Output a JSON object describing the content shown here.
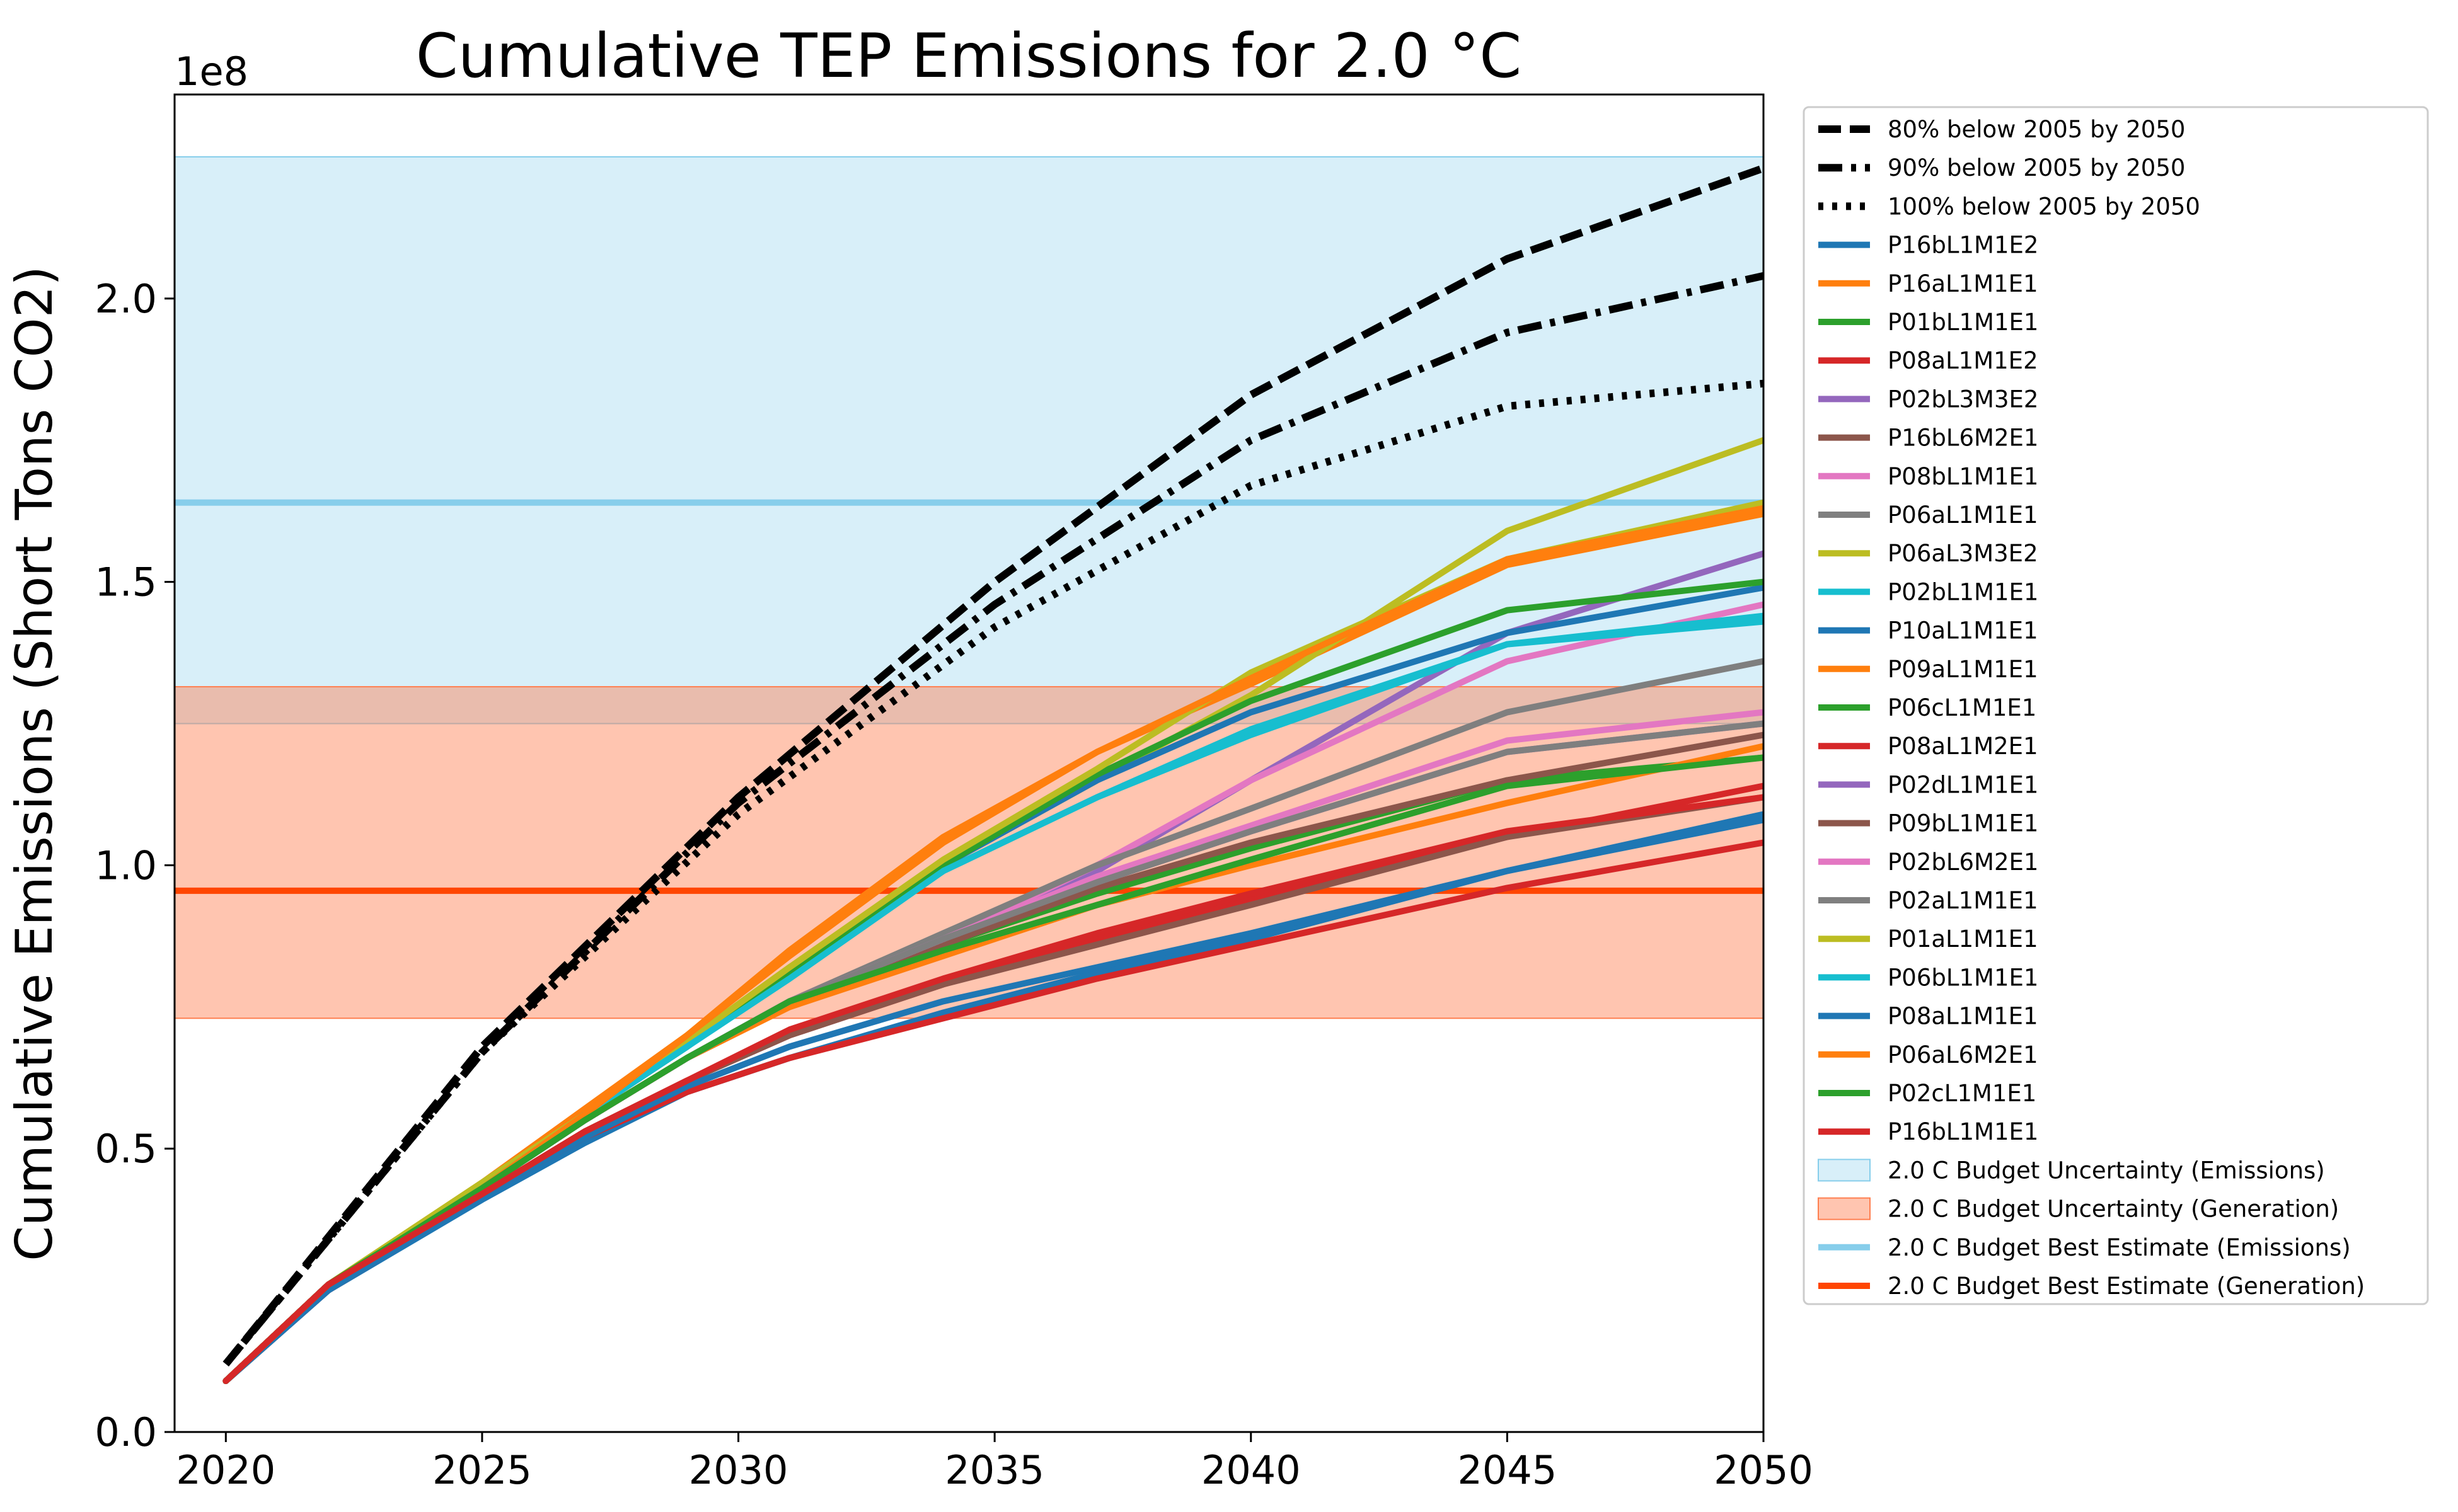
{
  "chart_data": {
    "type": "line",
    "title": "Cumulative TEP Emissions for 2.0 $^\\circ$C",
    "title_display": "Cumulative TEP Emissions for 2.0 °C",
    "ylabel": "Cumulative Emissions (Short Tons CO2)",
    "xlabel": "",
    "y_offset_label": "1e8",
    "xlim": [
      2019,
      2050
    ],
    "ylim": [
      0,
      2.36
    ],
    "x_ticks": [
      2020,
      2025,
      2030,
      2035,
      2040,
      2045,
      2050
    ],
    "x_tick_labels": [
      "2020",
      "2025",
      "2030",
      "2035",
      "2040",
      "2045",
      "2050"
    ],
    "y_ticks": [
      0,
      0.5,
      1.0,
      1.5,
      2.0
    ],
    "y_tick_labels": [
      "0.0",
      "0.5",
      "1.0",
      "1.5",
      "2.0"
    ],
    "grid": false,
    "legend_position": "outside-right",
    "bands": [
      {
        "name": "2.0 C Budget Uncertainty (Emissions)",
        "ymin": 1.25,
        "ymax": 2.25,
        "color": "#87ceeb",
        "opacity": 0.32
      },
      {
        "name": "2.0 C Budget Uncertainty (Generation)",
        "ymin": 0.73,
        "ymax": 1.315,
        "color": "#ff7f50",
        "opacity": 0.45
      }
    ],
    "hlines": [
      {
        "name": "2.0 C Budget Best Estimate (Emissions)",
        "y": 1.64,
        "color": "#87ceeb"
      },
      {
        "name": "2.0 C Budget Best Estimate (Generation)",
        "y": 0.955,
        "color": "#ff4500"
      }
    ],
    "reference_series": [
      {
        "name": "80% below 2005 by 2050",
        "style": "dashed",
        "color": "#000000",
        "x": [
          2020,
          2025,
          2030,
          2035,
          2040,
          2045,
          2050
        ],
        "y": [
          0.12,
          0.68,
          1.12,
          1.5,
          1.83,
          2.07,
          2.23
        ]
      },
      {
        "name": "90% below 2005 by 2050",
        "style": "dashdot",
        "color": "#000000",
        "x": [
          2020,
          2025,
          2030,
          2035,
          2040,
          2045,
          2050
        ],
        "y": [
          0.12,
          0.67,
          1.11,
          1.46,
          1.75,
          1.94,
          2.04
        ]
      },
      {
        "name": "100% below 2005 by 2050",
        "style": "dotted",
        "color": "#000000",
        "x": [
          2020,
          2025,
          2030,
          2035,
          2040,
          2045,
          2050
        ],
        "y": [
          0.12,
          0.67,
          1.09,
          1.42,
          1.67,
          1.81,
          1.85
        ]
      }
    ],
    "x": [
      2020,
      2022,
      2025,
      2027,
      2029,
      2031,
      2034,
      2037,
      2040,
      2045,
      2050
    ],
    "series": [
      {
        "name": "P16bL1M1E2",
        "color": "#1f77b4",
        "values": [
          0.09,
          0.25,
          0.41,
          0.51,
          0.6,
          0.66,
          0.74,
          0.81,
          0.87,
          0.99,
          1.08
        ]
      },
      {
        "name": "P16aL1M1E1",
        "color": "#ff7f0e",
        "values": [
          0.09,
          0.26,
          0.44,
          0.57,
          0.7,
          0.85,
          1.05,
          1.2,
          1.32,
          1.53,
          1.62
        ]
      },
      {
        "name": "P01bL1M1E1",
        "color": "#2ca02c",
        "values": [
          0.09,
          0.26,
          0.43,
          0.55,
          0.66,
          0.76,
          0.86,
          0.95,
          1.03,
          1.15,
          1.19
        ]
      },
      {
        "name": "P08aL1M1E2",
        "color": "#d62728",
        "values": [
          0.09,
          0.25,
          0.42,
          0.52,
          0.6,
          0.66,
          0.73,
          0.8,
          0.86,
          0.96,
          1.04
        ]
      },
      {
        "name": "P02bL3M3E2",
        "color": "#9467bd",
        "values": [
          0.09,
          0.26,
          0.43,
          0.55,
          0.66,
          0.76,
          0.86,
          0.99,
          1.15,
          1.41,
          1.55
        ]
      },
      {
        "name": "P16bL6M2E1",
        "color": "#8c564b",
        "values": [
          0.09,
          0.26,
          0.43,
          0.55,
          0.66,
          0.76,
          0.86,
          0.96,
          1.04,
          1.15,
          1.23
        ]
      },
      {
        "name": "P08bL1M1E1",
        "color": "#e377c2",
        "values": [
          0.09,
          0.26,
          0.43,
          0.55,
          0.66,
          0.76,
          0.87,
          1.0,
          1.15,
          1.36,
          1.46
        ]
      },
      {
        "name": "P06aL1M1E1",
        "color": "#7f7f7f",
        "values": [
          0.09,
          0.26,
          0.43,
          0.55,
          0.66,
          0.76,
          0.88,
          1.0,
          1.1,
          1.27,
          1.36
        ]
      },
      {
        "name": "P06aL3M3E2",
        "color": "#bcbd22",
        "values": [
          0.09,
          0.26,
          0.44,
          0.56,
          0.69,
          0.82,
          1.0,
          1.15,
          1.3,
          1.59,
          1.75
        ]
      },
      {
        "name": "P02bL1M1E1",
        "color": "#17becf",
        "values": [
          0.09,
          0.26,
          0.43,
          0.56,
          0.68,
          0.81,
          0.99,
          1.12,
          1.23,
          1.39,
          1.43
        ]
      },
      {
        "name": "P10aL1M1E1",
        "color": "#1f77b4",
        "values": [
          0.09,
          0.26,
          0.43,
          0.56,
          0.68,
          0.81,
          1.0,
          1.15,
          1.27,
          1.41,
          1.49
        ]
      },
      {
        "name": "P09aL1M1E1",
        "color": "#ff7f0e",
        "values": [
          0.09,
          0.26,
          0.43,
          0.55,
          0.66,
          0.75,
          0.84,
          0.93,
          1.0,
          1.11,
          1.21
        ]
      },
      {
        "name": "P06cL1M1E1",
        "color": "#2ca02c",
        "values": [
          0.09,
          0.26,
          0.43,
          0.56,
          0.68,
          0.81,
          1.0,
          1.16,
          1.29,
          1.45,
          1.5
        ]
      },
      {
        "name": "P08aL1M2E1",
        "color": "#d62728",
        "values": [
          0.09,
          0.26,
          0.42,
          0.53,
          0.62,
          0.7,
          0.79,
          0.87,
          0.94,
          1.05,
          1.14
        ]
      },
      {
        "name": "P02dL1M1E1",
        "color": "#9467bd",
        "values": [
          0.09,
          0.26,
          0.43,
          0.55,
          0.66,
          0.76,
          0.87,
          0.97,
          1.06,
          1.2,
          1.25
        ]
      },
      {
        "name": "P09bL1M1E1",
        "color": "#8c564b",
        "values": [
          0.09,
          0.26,
          0.42,
          0.53,
          0.62,
          0.7,
          0.79,
          0.86,
          0.93,
          1.05,
          1.12
        ]
      },
      {
        "name": "P02bL6M2E1",
        "color": "#e377c2",
        "values": [
          0.09,
          0.26,
          0.43,
          0.55,
          0.66,
          0.76,
          0.87,
          0.98,
          1.07,
          1.22,
          1.27
        ]
      },
      {
        "name": "P02aL1M1E1",
        "color": "#7f7f7f",
        "values": [
          0.09,
          0.26,
          0.43,
          0.55,
          0.66,
          0.76,
          0.87,
          0.97,
          1.06,
          1.2,
          1.25
        ]
      },
      {
        "name": "P01aL1M1E1",
        "color": "#bcbd22",
        "values": [
          0.09,
          0.26,
          0.44,
          0.56,
          0.69,
          0.82,
          1.01,
          1.17,
          1.34,
          1.54,
          1.64
        ]
      },
      {
        "name": "P06bL1M1E1",
        "color": "#17becf",
        "values": [
          0.09,
          0.26,
          0.43,
          0.56,
          0.68,
          0.8,
          0.99,
          1.12,
          1.24,
          1.39,
          1.44
        ]
      },
      {
        "name": "P08aL1M1E1",
        "color": "#1f77b4",
        "values": [
          0.09,
          0.25,
          0.42,
          0.52,
          0.61,
          0.68,
          0.76,
          0.82,
          0.88,
          0.99,
          1.09
        ]
      },
      {
        "name": "P06aL6M2E1",
        "color": "#ff7f0e",
        "values": [
          0.09,
          0.26,
          0.43,
          0.56,
          0.7,
          0.84,
          1.04,
          1.2,
          1.33,
          1.54,
          1.63
        ]
      },
      {
        "name": "P02cL1M1E1",
        "color": "#2ca02c",
        "values": [
          0.09,
          0.26,
          0.43,
          0.55,
          0.66,
          0.76,
          0.85,
          0.93,
          1.01,
          1.14,
          1.19
        ]
      },
      {
        "name": "P16bL1M1E1",
        "color": "#d62728",
        "values": [
          0.09,
          0.26,
          0.42,
          0.53,
          0.62,
          0.71,
          0.8,
          0.88,
          0.95,
          1.06,
          1.12
        ]
      }
    ]
  }
}
